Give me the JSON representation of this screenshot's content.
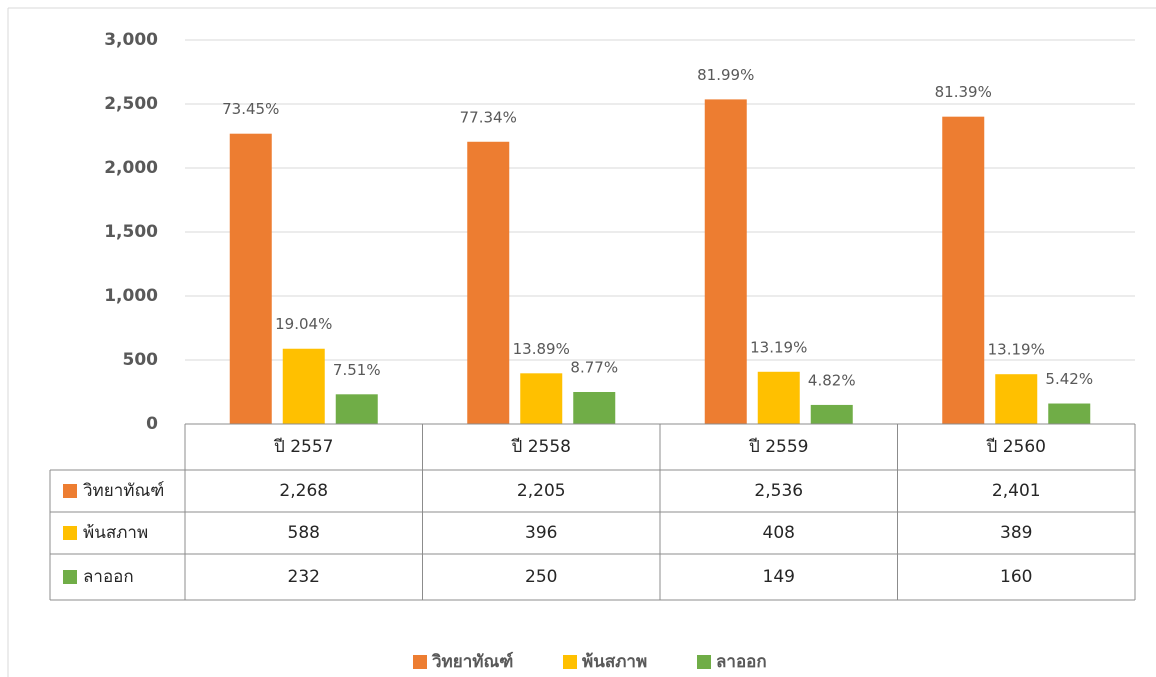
{
  "chart_data": {
    "type": "bar",
    "categories": [
      "ปี 2557",
      "ปี 2558",
      "ปี 2559",
      "ปี 2560"
    ],
    "series": [
      {
        "name": "วิทยาทัณฑ์",
        "color": "#ED7D31",
        "values": [
          2268,
          2205,
          2536,
          2401
        ],
        "value_labels": [
          "2,268",
          "2,205",
          "2,536",
          "2,401"
        ],
        "percent_labels": [
          "73.45%",
          "77.34%",
          "81.99%",
          "81.39%"
        ]
      },
      {
        "name": "พ้นสภาพ",
        "color": "#FFC000",
        "values": [
          588,
          396,
          408,
          389
        ],
        "value_labels": [
          "588",
          "396",
          "408",
          "389"
        ],
        "percent_labels": [
          "19.04%",
          "13.89%",
          "13.19%",
          "13.19%"
        ]
      },
      {
        "name": "ลาออก",
        "color": "#70AD47",
        "values": [
          232,
          250,
          149,
          160
        ],
        "value_labels": [
          "232",
          "250",
          "149",
          "160"
        ],
        "percent_labels": [
          "7.51%",
          "8.77%",
          "4.82%",
          "5.42%"
        ]
      }
    ],
    "ylim": [
      0,
      3000
    ],
    "yticks": [
      0,
      500,
      {
        "value": 1000,
        "label": "1,000"
      },
      {
        "value": 1500,
        "label": "1,500"
      },
      {
        "value": 2000,
        "label": "2,000"
      },
      {
        "value": 2500,
        "label": "2,500"
      },
      {
        "value": 3000,
        "label": "3,000"
      }
    ],
    "grid": true,
    "legend": "bottom"
  }
}
